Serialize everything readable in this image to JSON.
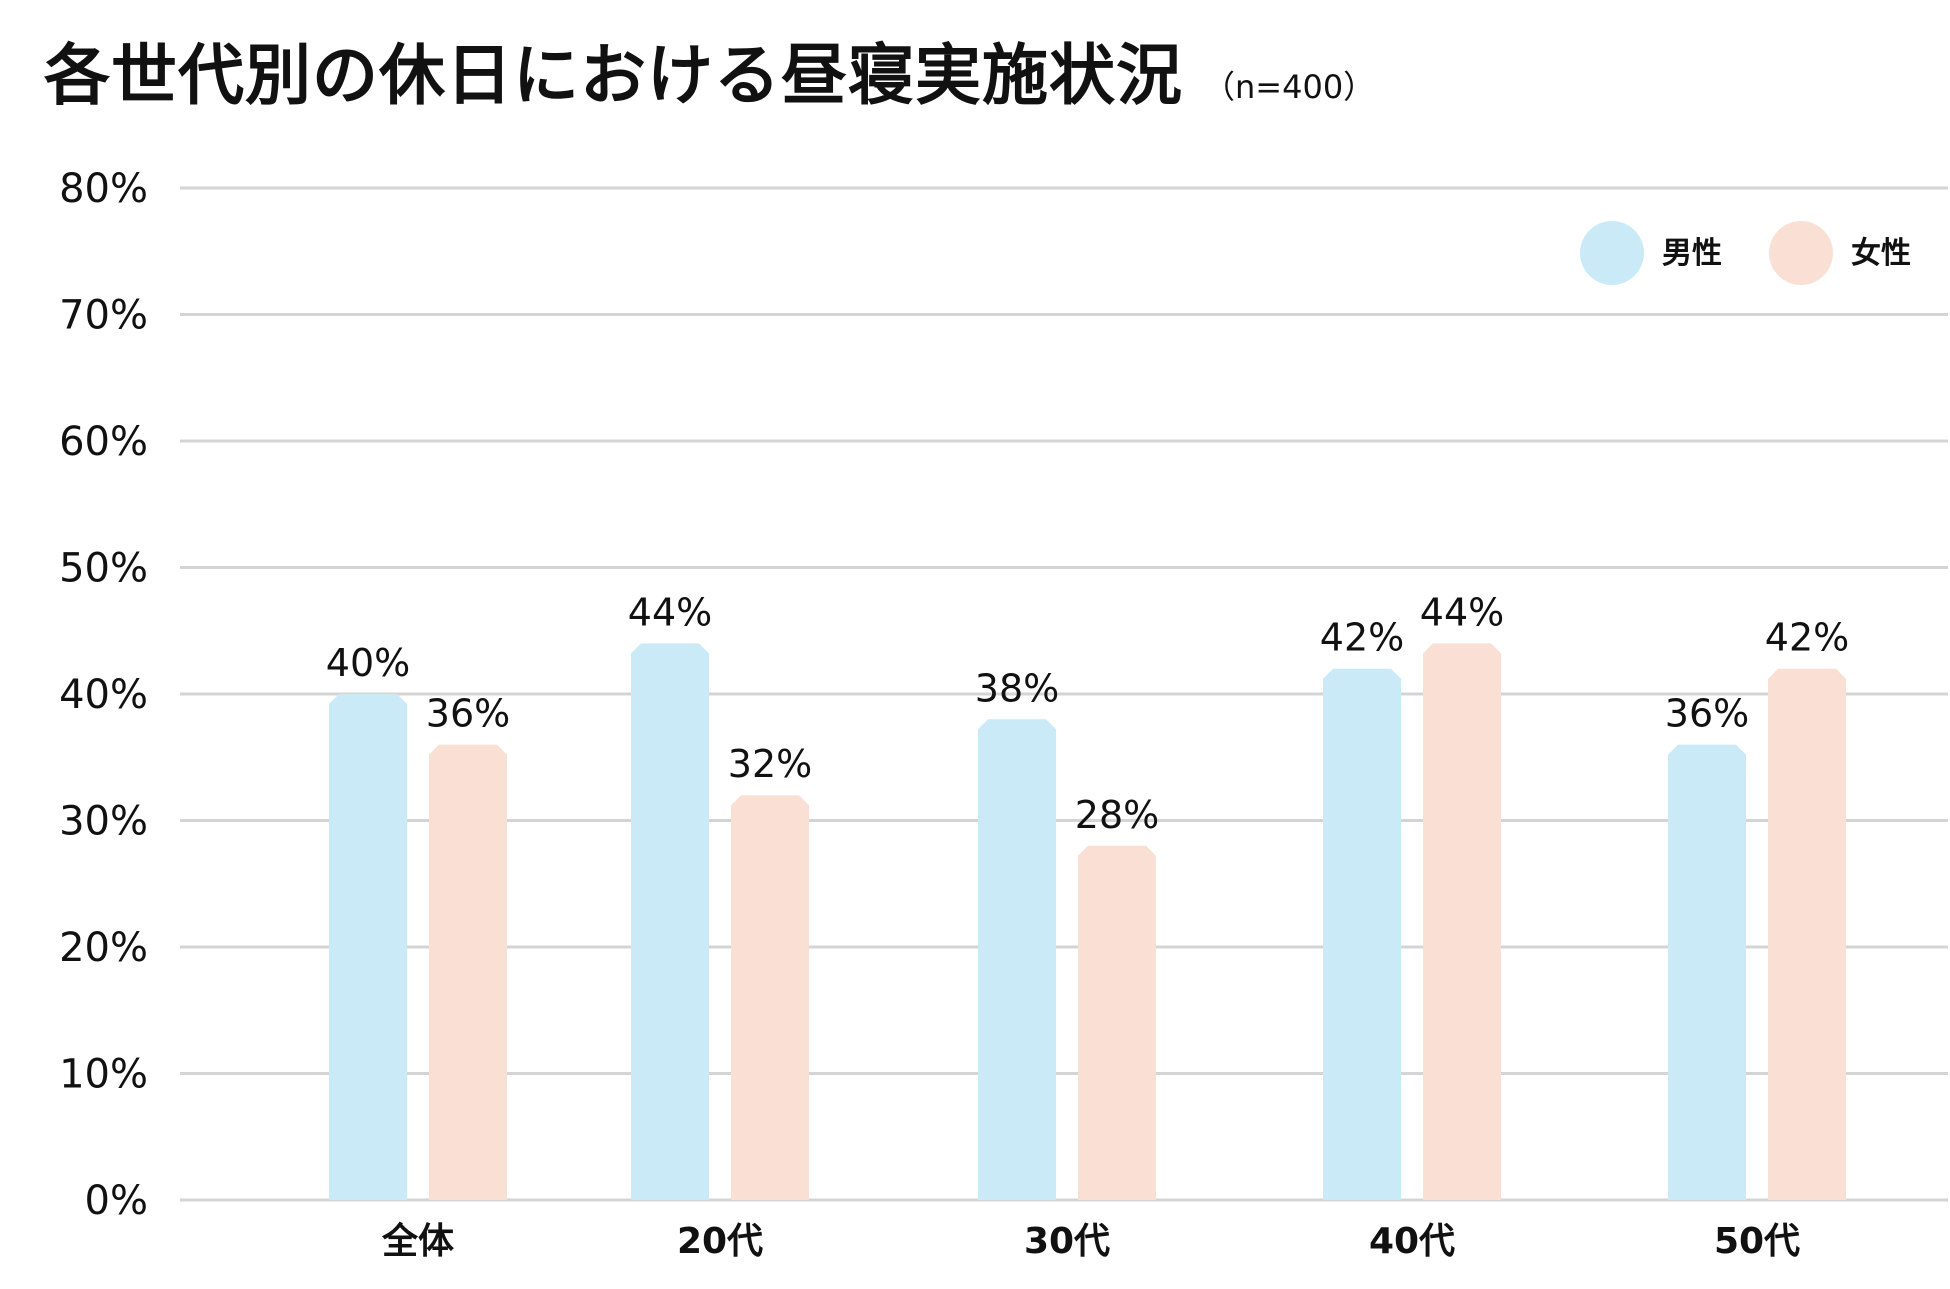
{
  "chart_data": {
    "type": "bar",
    "title": "各世代別の休日における昼寝実施状況",
    "subtitle": "（n=400）",
    "categories": [
      "全体",
      "20代",
      "30代",
      "40代",
      "50代"
    ],
    "series": [
      {
        "name": "男性",
        "values": [
          40,
          44,
          38,
          42,
          36
        ],
        "labels": [
          "40%",
          "44%",
          "38%",
          "42%",
          "36%"
        ],
        "color": "#cbeaf8"
      },
      {
        "name": "女性",
        "values": [
          36,
          32,
          28,
          44,
          42
        ],
        "labels": [
          "36%",
          "32%",
          "28%",
          "44%",
          "42%"
        ],
        "color": "#fae0d4"
      }
    ],
    "ylim": [
      0,
      80
    ],
    "yticks": [
      "0%",
      "10%",
      "20%",
      "30%",
      "40%",
      "50%",
      "60%",
      "70%",
      "80%"
    ],
    "grid": true,
    "legend_position": "top-right"
  },
  "colors": {
    "gridline": "#d4d4d4",
    "text": "#111111"
  }
}
